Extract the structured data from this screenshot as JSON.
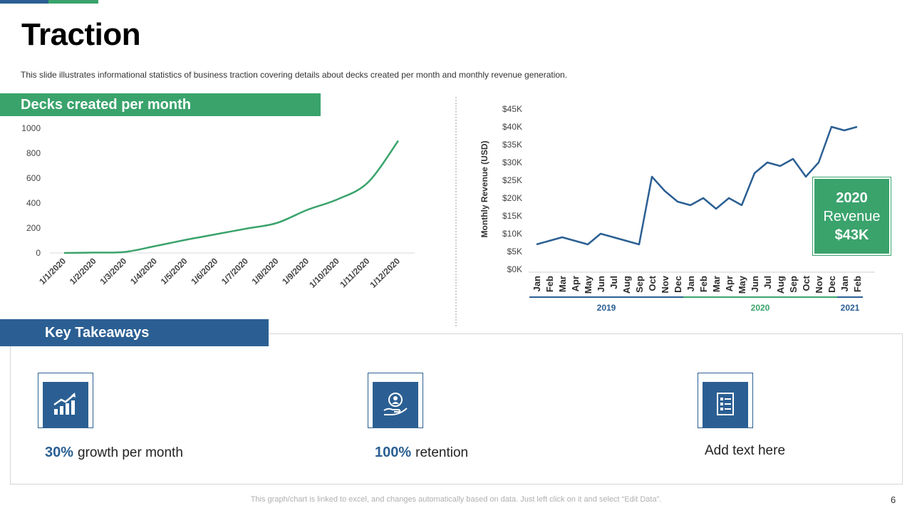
{
  "header": {
    "title": "Traction",
    "subtitle": "This slide illustrates informational  statistics of business traction covering  details about decks created per month and monthly revenue  generation.",
    "accent_blue": "#2b5f93",
    "accent_green": "#3aa36c"
  },
  "left_section": {
    "label": "Decks created per month"
  },
  "right_callout": {
    "line1": "2020",
    "line2": "Revenue",
    "line3": "$43K"
  },
  "chart_data": [
    {
      "type": "line",
      "title": "Decks created per month",
      "xlabel": "",
      "ylabel": "",
      "categories": [
        "1/1/2020",
        "1/2/2020",
        "1/3/2020",
        "1/4/2020",
        "1/5/2020",
        "1/6/2020",
        "1/7/2020",
        "1/8/2020",
        "1/9/2020",
        "1/10/2020",
        "1/11/2020",
        "1/12/2020"
      ],
      "values": [
        0,
        3,
        8,
        55,
        105,
        150,
        195,
        240,
        345,
        430,
        565,
        900
      ],
      "yticks": [
        "0",
        "200",
        "400",
        "600",
        "800",
        "1000"
      ],
      "ylim": [
        0,
        1000
      ],
      "grid": false,
      "color": "#3aa36c"
    },
    {
      "type": "line",
      "title": "",
      "xlabel": "",
      "ylabel": "Monthly Revenue (USD)",
      "categories": [
        "Jan",
        "Feb",
        "Mar",
        "Apr",
        "May",
        "Jun",
        "Jul",
        "Aug",
        "Sep",
        "Oct",
        "Nov",
        "Dec",
        "Jan",
        "Feb",
        "Mar",
        "Apr",
        "May",
        "Jun",
        "Jul",
        "Aug",
        "Sep",
        "Oct",
        "Nov",
        "Dec",
        "Jan",
        "Feb"
      ],
      "values": [
        7,
        8,
        9,
        8,
        7,
        10,
        9,
        8,
        7,
        26,
        22,
        19,
        18,
        20,
        17,
        20,
        18,
        27,
        30,
        29,
        31,
        26,
        30,
        40,
        39,
        40
      ],
      "units": "K USD",
      "yticks": [
        "$0K",
        "$5K",
        "$10K",
        "$15K",
        "$20K",
        "$25K",
        "$30K",
        "$35K",
        "$40K",
        "$45K"
      ],
      "ylim": [
        0,
        45
      ],
      "grid": false,
      "color": "#2b5f93",
      "years": [
        {
          "label": "2019",
          "start": 0,
          "end": 11,
          "color": "#2b5f93"
        },
        {
          "label": "2020",
          "start": 12,
          "end": 23,
          "color": "#3aa36c"
        },
        {
          "label": "2021",
          "start": 24,
          "end": 25,
          "color": "#2b5f93"
        }
      ]
    }
  ],
  "takeaways": {
    "label": "Key Takeaways",
    "items": [
      {
        "icon": "growth-chart-icon",
        "number": "30%",
        "text": "growth per month"
      },
      {
        "icon": "retention-hand-icon",
        "number": "100%",
        "text": "retention"
      },
      {
        "icon": "document-checklist-icon",
        "number": "",
        "text": "Add text here"
      }
    ]
  },
  "footer": {
    "note": "This graph/chart is linked to excel,  and changes automatically based on data. Just left click on it and select “Edit Data”.",
    "page_number": "6"
  }
}
